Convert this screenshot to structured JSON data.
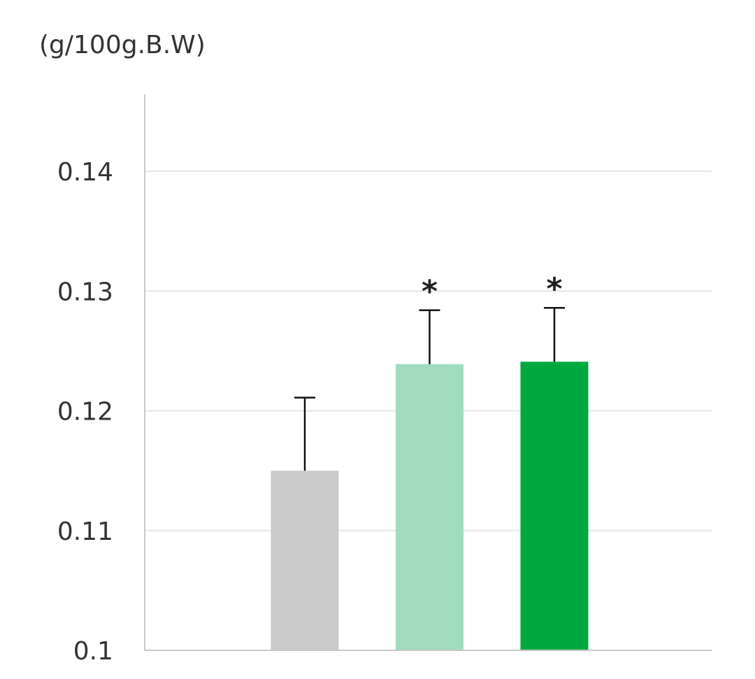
{
  "chart_data": {
    "type": "bar",
    "unit_label": "(g/100g.B.W)",
    "categories": [
      "",
      "",
      ""
    ],
    "values": [
      0.115,
      0.1239,
      0.1241
    ],
    "errors": [
      0.0061,
      0.0045,
      0.0045
    ],
    "significance": [
      "",
      "*",
      "*"
    ],
    "colors": [
      "#cacaca",
      "#a0dcbd",
      "#00a83f"
    ],
    "ylim": [
      0.1,
      0.148
    ],
    "yticks": [
      0.1,
      0.11,
      0.12,
      0.13,
      0.14
    ],
    "ytick_labels": [
      "0.1",
      "0.11",
      "0.12",
      "0.13",
      "0.14"
    ],
    "grid": true,
    "legend": "none"
  }
}
